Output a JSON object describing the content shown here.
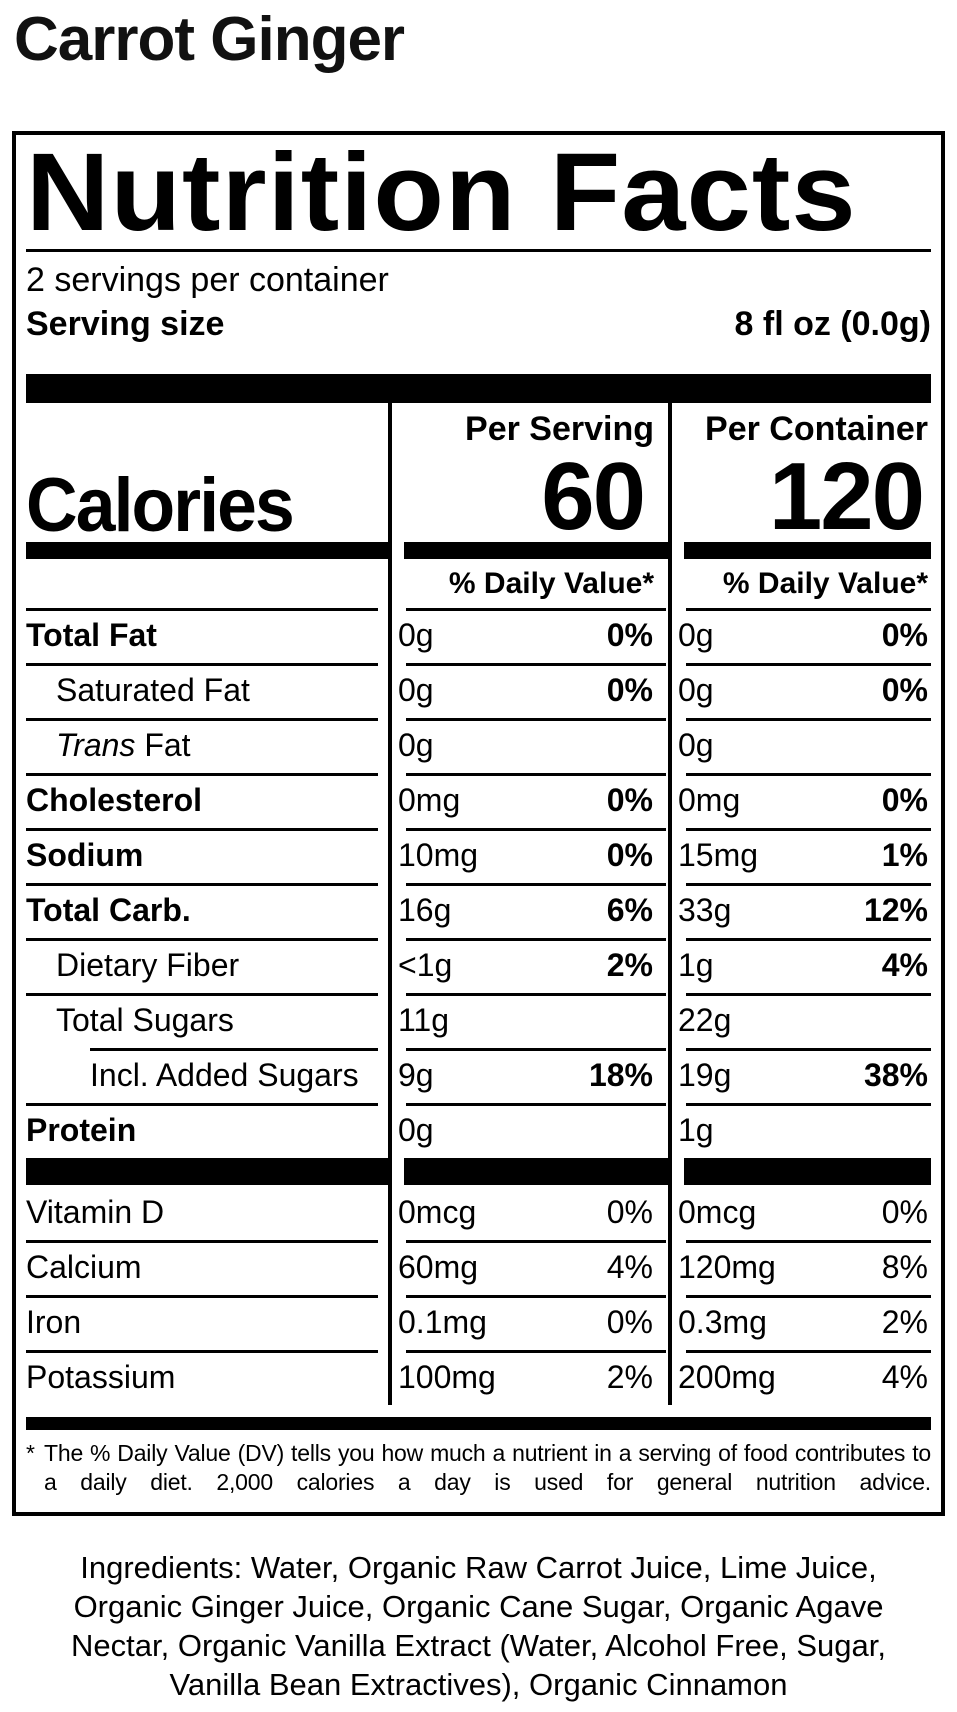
{
  "product_title": "Carrot Ginger",
  "panel": {
    "title": "Nutrition Facts",
    "servings_per_container": "2 servings per container",
    "serving_size_label": "Serving size",
    "serving_size_value": "8 fl oz (0.0g)",
    "columns": {
      "serving": "Per Serving",
      "container": "Per Container"
    },
    "calories_label": "Calories",
    "calories": {
      "serving": "60",
      "container": "120"
    },
    "daily_value_header": "% Daily Value*",
    "nutrients": [
      {
        "label": "Total Fat",
        "bold": true,
        "indent": 0,
        "serving_amount": "0g",
        "serving_dv": "0%",
        "container_amount": "0g",
        "container_dv": "0%"
      },
      {
        "label": "Saturated Fat",
        "bold": false,
        "indent": 1,
        "serving_amount": "0g",
        "serving_dv": "0%",
        "container_amount": "0g",
        "container_dv": "0%"
      },
      {
        "label": "Fat",
        "italic_prefix": "Trans",
        "bold": false,
        "indent": 1,
        "serving_amount": "0g",
        "serving_dv": "",
        "container_amount": "0g",
        "container_dv": ""
      },
      {
        "label": "Cholesterol",
        "bold": true,
        "indent": 0,
        "serving_amount": "0mg",
        "serving_dv": "0%",
        "container_amount": "0mg",
        "container_dv": "0%"
      },
      {
        "label": "Sodium",
        "bold": true,
        "indent": 0,
        "serving_amount": "10mg",
        "serving_dv": "0%",
        "container_amount": "15mg",
        "container_dv": "1%"
      },
      {
        "label": "Total Carb.",
        "bold": true,
        "indent": 0,
        "serving_amount": "16g",
        "serving_dv": "6%",
        "container_amount": "33g",
        "container_dv": "12%"
      },
      {
        "label": "Dietary Fiber",
        "bold": false,
        "indent": 1,
        "serving_amount": "<1g",
        "serving_dv": "2%",
        "container_amount": "1g",
        "container_dv": "4%"
      },
      {
        "label": "Total Sugars",
        "bold": false,
        "indent": 1,
        "serving_amount": "11g",
        "serving_dv": "",
        "container_amount": "22g",
        "container_dv": ""
      },
      {
        "label": "Incl. Added Sugars",
        "bold": false,
        "indent": 2,
        "hairline_indent": true,
        "serving_amount": "9g",
        "serving_dv": "18%",
        "container_amount": "19g",
        "container_dv": "38%"
      },
      {
        "label": "Protein",
        "bold": true,
        "indent": 0,
        "serving_amount": "0g",
        "serving_dv": "",
        "container_amount": "1g",
        "container_dv": ""
      }
    ],
    "vitamins": [
      {
        "label": "Vitamin D",
        "serving_amount": "0mcg",
        "serving_dv": "0%",
        "container_amount": "0mcg",
        "container_dv": "0%",
        "top_line": false
      },
      {
        "label": "Calcium",
        "serving_amount": "60mg",
        "serving_dv": "4%",
        "container_amount": "120mg",
        "container_dv": "8%"
      },
      {
        "label": "Iron",
        "serving_amount": "0.1mg",
        "serving_dv": "0%",
        "container_amount": "0.3mg",
        "container_dv": "2%"
      },
      {
        "label": "Potassium",
        "serving_amount": "100mg",
        "serving_dv": "2%",
        "container_amount": "200mg",
        "container_dv": "4%"
      }
    ],
    "footnote_marker": "*",
    "footnote": "The % Daily Value (DV) tells you how much a nutrient in a serving of food contributes to a daily diet. 2,000 calories a day is used for general nutrition advice."
  },
  "ingredients": "Ingredients: Water, Organic Raw Carrot Juice, Lime Juice, Organic Ginger Juice, Organic Cane Sugar, Organic Agave Nectar, Organic Vanilla Extract (Water, Alcohol Free, Sugar, Vanilla Bean Extractives), Organic Cinnamon"
}
